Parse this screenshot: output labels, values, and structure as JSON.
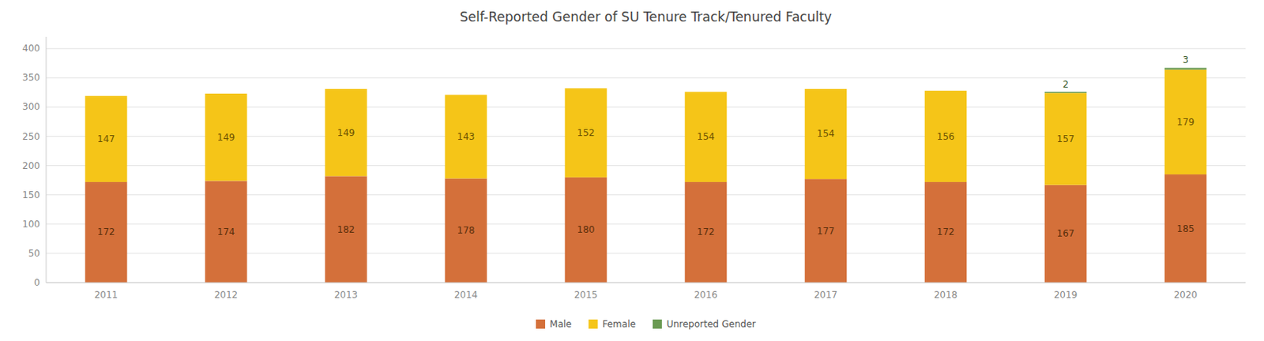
{
  "chart_data": {
    "type": "bar",
    "title": "Self-Reported Gender of SU Tenure Track/Tenured Faculty",
    "categories": [
      "2011",
      "2012",
      "2013",
      "2014",
      "2015",
      "2016",
      "2017",
      "2018",
      "2019",
      "2020"
    ],
    "series": [
      {
        "name": "Male",
        "color": "#d4703a",
        "values": [
          172,
          174,
          182,
          178,
          180,
          172,
          177,
          172,
          167,
          185
        ]
      },
      {
        "name": "Female",
        "color": "#f5c518",
        "values": [
          147,
          149,
          149,
          143,
          152,
          154,
          154,
          156,
          157,
          179
        ]
      },
      {
        "name": "Unreported Gender",
        "color": "#6a9a52",
        "values": [
          0,
          0,
          0,
          0,
          0,
          0,
          0,
          0,
          2,
          3
        ]
      }
    ],
    "stacked": true,
    "ylim": [
      0,
      420
    ],
    "yticks": [
      0,
      50,
      100,
      150,
      200,
      250,
      300,
      350,
      400
    ],
    "grid": true,
    "data_labels": true,
    "legend": "bottom"
  }
}
